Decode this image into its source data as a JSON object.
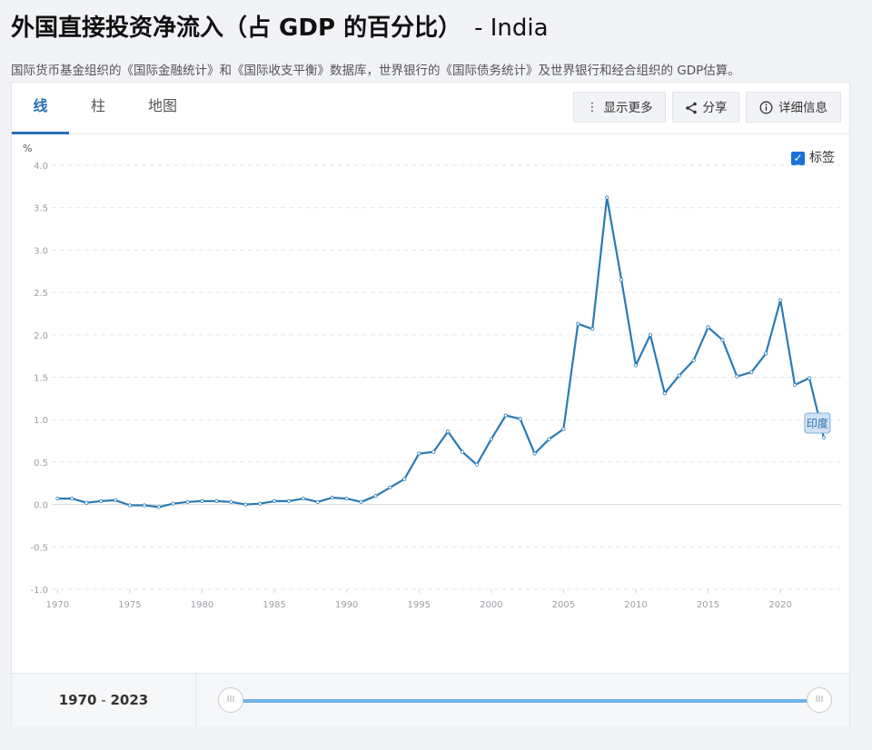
{
  "header": {
    "title": "外国直接投资净流入（占 GDP 的百分比）",
    "country": "- India",
    "subtitle": "国际货币基金组织的《国际金融统计》和《国际收支平衡》数据库，世界银行的《国际债务统计》及世界银行和经合组织的 GDP估算。"
  },
  "tabs": [
    {
      "label": "线",
      "active": true
    },
    {
      "label": "柱",
      "active": false
    },
    {
      "label": "地图",
      "active": false
    }
  ],
  "toolbar": {
    "more_label": "显示更多",
    "share_label": "分享",
    "details_label": "详细信息"
  },
  "labels_toggle": {
    "label": "标签",
    "checked": true
  },
  "footer": {
    "range_start": "1970",
    "range_sep": "-",
    "range_end": "2023"
  },
  "colors": {
    "line": "#2b7bb5",
    "accent": "#2a6fb5",
    "slider": "#6fb4e6"
  },
  "chart_data": {
    "type": "line",
    "ylabel": "%",
    "ylim": [
      -1.0,
      4.0
    ],
    "yticks": [
      "-1.0",
      "-0.5",
      "0.0",
      "0.5",
      "1.0",
      "1.5",
      "2.0",
      "2.5",
      "3.0",
      "3.5",
      "4.0"
    ],
    "xticks": [
      "1970",
      "1975",
      "1980",
      "1985",
      "1990",
      "1995",
      "2000",
      "2005",
      "2010",
      "2015",
      "2020"
    ],
    "grid": true,
    "series": [
      {
        "name": "印度",
        "x": [
          1970,
          1971,
          1972,
          1973,
          1974,
          1975,
          1976,
          1977,
          1978,
          1979,
          1980,
          1981,
          1982,
          1983,
          1984,
          1985,
          1986,
          1987,
          1988,
          1989,
          1990,
          1991,
          1992,
          1993,
          1994,
          1995,
          1996,
          1997,
          1998,
          1999,
          2000,
          2001,
          2002,
          2003,
          2004,
          2005,
          2006,
          2007,
          2008,
          2009,
          2010,
          2011,
          2012,
          2013,
          2014,
          2015,
          2016,
          2017,
          2018,
          2019,
          2020,
          2021,
          2022,
          2023
        ],
        "values": [
          0.07,
          0.07,
          0.02,
          0.04,
          0.05,
          -0.01,
          -0.01,
          -0.03,
          0.01,
          0.03,
          0.04,
          0.04,
          0.03,
          0.0,
          0.01,
          0.04,
          0.04,
          0.07,
          0.03,
          0.08,
          0.07,
          0.03,
          0.1,
          0.2,
          0.3,
          0.6,
          0.62,
          0.86,
          0.62,
          0.47,
          0.77,
          1.05,
          1.01,
          0.6,
          0.77,
          0.89,
          2.13,
          2.07,
          3.62,
          2.65,
          1.64,
          2.0,
          1.31,
          1.52,
          1.7,
          2.09,
          1.94,
          1.51,
          1.56,
          1.78,
          2.41,
          1.41,
          1.49,
          0.79
        ]
      }
    ]
  }
}
